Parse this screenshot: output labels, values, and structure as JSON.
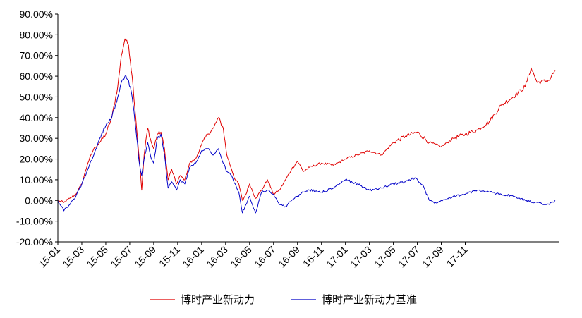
{
  "chart_data": {
    "type": "line",
    "title": "",
    "xlabel": "",
    "ylabel": "",
    "ylim": [
      -20,
      90
    ],
    "y_ticks": [
      "90.00%",
      "80.00%",
      "70.00%",
      "60.00%",
      "50.00%",
      "40.00%",
      "30.00%",
      "20.00%",
      "10.00%",
      "0.00%",
      "-10.00%",
      "-20.00%"
    ],
    "x_ticks": [
      "15-01",
      "15-03",
      "15-05",
      "15-07",
      "15-09",
      "15-11",
      "16-01",
      "16-03",
      "16-05",
      "16-07",
      "16-09",
      "16-11",
      "17-01",
      "17-03",
      "17-05",
      "17-07",
      "17-09",
      "17-11"
    ],
    "x_unit": "month index (0 = 15-01)",
    "grid": false,
    "legend_position": "bottom",
    "series": [
      {
        "name": "博时产业新动力",
        "color": "#e00000",
        "points": [
          [
            0,
            0
          ],
          [
            0.5,
            -1
          ],
          [
            1,
            1
          ],
          [
            1.5,
            3
          ],
          [
            2,
            8
          ],
          [
            2.5,
            18
          ],
          [
            3,
            25
          ],
          [
            3.5,
            28
          ],
          [
            4,
            32
          ],
          [
            4.5,
            40
          ],
          [
            5,
            55
          ],
          [
            5.3,
            70
          ],
          [
            5.6,
            78
          ],
          [
            5.9,
            75
          ],
          [
            6.2,
            60
          ],
          [
            6.5,
            40
          ],
          [
            6.8,
            20
          ],
          [
            7,
            5
          ],
          [
            7.2,
            22
          ],
          [
            7.5,
            35
          ],
          [
            7.8,
            28
          ],
          [
            8,
            25
          ],
          [
            8.3,
            32
          ],
          [
            8.6,
            33
          ],
          [
            8.9,
            25
          ],
          [
            9.2,
            10
          ],
          [
            9.5,
            15
          ],
          [
            9.9,
            8
          ],
          [
            10.2,
            12
          ],
          [
            10.6,
            10
          ],
          [
            11,
            18
          ],
          [
            11.5,
            20
          ],
          [
            12,
            27
          ],
          [
            12.5,
            32
          ],
          [
            13,
            35
          ],
          [
            13.4,
            40
          ],
          [
            13.8,
            35
          ],
          [
            14.1,
            22
          ],
          [
            14.5,
            15
          ],
          [
            14.8,
            10
          ],
          [
            15.1,
            8
          ],
          [
            15.4,
            0
          ],
          [
            15.7,
            3
          ],
          [
            16,
            8
          ],
          [
            16.5,
            1
          ],
          [
            17,
            5
          ],
          [
            17.5,
            10
          ],
          [
            18,
            3
          ],
          [
            18.5,
            5
          ],
          [
            19,
            10
          ],
          [
            19.5,
            15
          ],
          [
            20,
            19
          ],
          [
            20.5,
            14
          ],
          [
            21,
            16
          ],
          [
            22,
            18
          ],
          [
            23,
            17
          ],
          [
            24,
            20
          ],
          [
            25,
            22
          ],
          [
            26,
            24
          ],
          [
            27,
            22
          ],
          [
            28,
            28
          ],
          [
            29,
            31
          ],
          [
            30,
            33
          ],
          [
            31,
            28
          ],
          [
            32,
            26
          ],
          [
            33,
            30
          ],
          [
            34,
            32
          ],
          [
            35,
            34
          ],
          [
            36,
            38
          ],
          [
            37,
            46
          ],
          [
            38,
            50
          ],
          [
            39,
            55
          ],
          [
            39.5,
            64
          ],
          [
            40,
            57
          ],
          [
            41,
            58
          ],
          [
            41.5,
            63
          ]
        ]
      },
      {
        "name": "博时产业新动力基准",
        "color": "#0000c8",
        "points": [
          [
            0,
            0
          ],
          [
            0.5,
            -5
          ],
          [
            1,
            -2
          ],
          [
            1.5,
            2
          ],
          [
            2,
            8
          ],
          [
            2.5,
            15
          ],
          [
            3,
            22
          ],
          [
            3.5,
            30
          ],
          [
            4,
            36
          ],
          [
            4.5,
            40
          ],
          [
            5,
            50
          ],
          [
            5.3,
            57
          ],
          [
            5.6,
            60
          ],
          [
            5.9,
            58
          ],
          [
            6.2,
            50
          ],
          [
            6.5,
            35
          ],
          [
            6.8,
            18
          ],
          [
            7,
            12
          ],
          [
            7.2,
            20
          ],
          [
            7.5,
            28
          ],
          [
            7.8,
            20
          ],
          [
            8,
            18
          ],
          [
            8.3,
            30
          ],
          [
            8.6,
            32
          ],
          [
            8.9,
            22
          ],
          [
            9.2,
            6
          ],
          [
            9.5,
            9
          ],
          [
            9.9,
            5
          ],
          [
            10.2,
            10
          ],
          [
            10.6,
            8
          ],
          [
            11,
            16
          ],
          [
            11.5,
            18
          ],
          [
            12,
            24
          ],
          [
            12.5,
            25
          ],
          [
            13,
            22
          ],
          [
            13.4,
            25
          ],
          [
            13.8,
            18
          ],
          [
            14.1,
            14
          ],
          [
            14.5,
            12
          ],
          [
            14.8,
            8
          ],
          [
            15.1,
            4
          ],
          [
            15.4,
            -6
          ],
          [
            15.7,
            -2
          ],
          [
            16,
            2
          ],
          [
            16.5,
            -6
          ],
          [
            17,
            4
          ],
          [
            17.5,
            5
          ],
          [
            18,
            3
          ],
          [
            18.5,
            -2
          ],
          [
            19,
            -3
          ],
          [
            19.5,
            0
          ],
          [
            20,
            2
          ],
          [
            20.5,
            4
          ],
          [
            21,
            5
          ],
          [
            22,
            4
          ],
          [
            23,
            6
          ],
          [
            24,
            10
          ],
          [
            25,
            8
          ],
          [
            26,
            5
          ],
          [
            27,
            6
          ],
          [
            28,
            8
          ],
          [
            29,
            9
          ],
          [
            29.8,
            11
          ],
          [
            30.5,
            7
          ],
          [
            31,
            0
          ],
          [
            31.5,
            -1
          ],
          [
            32,
            0
          ],
          [
            33,
            2
          ],
          [
            34,
            3
          ],
          [
            35,
            5
          ],
          [
            36,
            4
          ],
          [
            37,
            3
          ],
          [
            38,
            2
          ],
          [
            39,
            0
          ],
          [
            40,
            -1
          ],
          [
            41,
            -2
          ],
          [
            41.5,
            0
          ]
        ]
      }
    ]
  }
}
